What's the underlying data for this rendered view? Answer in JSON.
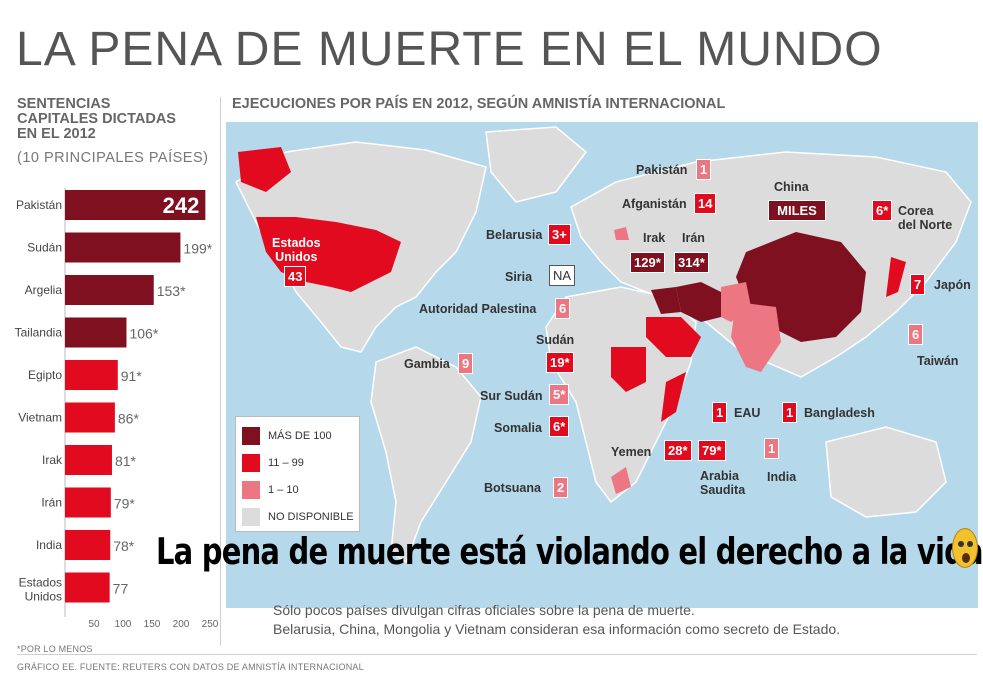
{
  "title": "LA PENA DE MUERTE EN EL MUNDO",
  "side": {
    "heading_lines": [
      "SENTENCIAS",
      "CAPITALES DICTADAS",
      "EN EL 2012"
    ],
    "subheading": "(10 PRINCIPALES PAÍSES)"
  },
  "chart_data": {
    "type": "bar",
    "orientation": "horizontal",
    "title": "SENTENCIAS CAPITALES DICTADAS EN EL 2012",
    "subtitle": "(10 PRINCIPALES PAÍSES)",
    "categories": [
      "Pakistán",
      "Sudán",
      "Argelia",
      "Tailandia",
      "Egipto",
      "Vietnam",
      "Irak",
      "Irán",
      "India",
      "Estados Unidos"
    ],
    "values": [
      242,
      199,
      153,
      106,
      91,
      86,
      81,
      79,
      78,
      77
    ],
    "value_labels": [
      "242",
      "199*",
      "153*",
      "106*",
      "91*",
      "86*",
      "81*",
      "79*",
      "78*",
      "77"
    ],
    "xlim": [
      0,
      250
    ],
    "xticks": [
      "50",
      "100",
      "150",
      "200",
      "250"
    ],
    "color_dark": "#7e1020",
    "color_red": "#e20a1e"
  },
  "map": {
    "heading": "EJECUCIONES POR PAÍS EN 2012, SEGÚN AMNISTÍA INTERNACIONAL",
    "colors": {
      "sea": "#b5d8ea",
      "land": "#dcdcdc",
      "dark": "#7e1020",
      "red": "#e20a1e",
      "pink": "#ec7682"
    },
    "countries": [
      {
        "name": "Estados Unidos",
        "value": "43"
      },
      {
        "name": "Pakistán",
        "value": "1"
      },
      {
        "name": "Afganistán",
        "value": "14"
      },
      {
        "name": "China",
        "value": "MILES"
      },
      {
        "name": "Corea del Norte",
        "value": "6*"
      },
      {
        "name": "Belarusia",
        "value": "3+"
      },
      {
        "name": "Irak",
        "value": "129*"
      },
      {
        "name": "Irán",
        "value": "314*"
      },
      {
        "name": "Siria",
        "value": "NA"
      },
      {
        "name": "Japón",
        "value": "7"
      },
      {
        "name": "Autoridad Palestina",
        "value": "6"
      },
      {
        "name": "Taiwán",
        "value": "6"
      },
      {
        "name": "Sudán",
        "value": "19*"
      },
      {
        "name": "Gambia",
        "value": "9"
      },
      {
        "name": "Sur Sudán",
        "value": "5*"
      },
      {
        "name": "EAU",
        "value": "1"
      },
      {
        "name": "Bangladesh",
        "value": "1"
      },
      {
        "name": "Somalia",
        "value": "6*"
      },
      {
        "name": "Yemen",
        "value": "28*"
      },
      {
        "name": "Arabia Saudita",
        "value": "79*"
      },
      {
        "name": "India",
        "value": "1"
      },
      {
        "name": "Botsuana",
        "value": "2"
      }
    ],
    "labels": {
      "usa_l1": "Estados",
      "usa_l2": "Unidos",
      "corea_l1": "Corea",
      "corea_l2": "del Norte",
      "arabia_l1": "Arabia",
      "arabia_l2": "Saudita"
    }
  },
  "legend": [
    {
      "label": "MÁS DE 100",
      "color": "#7e1020"
    },
    {
      "label": "11 – 99",
      "color": "#e20a1e"
    },
    {
      "label": "1 – 10",
      "color": "#ec7682"
    },
    {
      "label": "NO DISPONIBLE",
      "color": "#dcdcdc"
    }
  ],
  "overlay_text": "La pena de muerte está violando el derecho a la vida",
  "emoji_icon": "scared-face-icon",
  "note_lines": [
    "Sólo pocos países divulgan cifras oficiales sobre la pena de muerte.",
    "Belarusia, China, Mongolia y Vietnam consideran esa información como secreto de Estado."
  ],
  "footnote": "*POR LO MENOS",
  "source": "GRÁFICO EE. FUENTE: REUTERS CON DATOS DE AMNISTÍA INTERNACIONAL"
}
